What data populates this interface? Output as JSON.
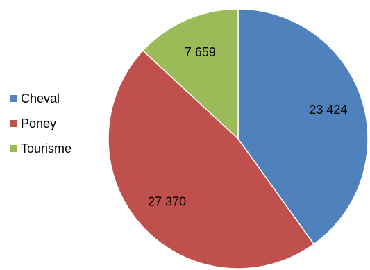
{
  "chart_data": {
    "type": "pie",
    "title": "",
    "categories": [
      "Cheval",
      "Poney",
      "Tourisme"
    ],
    "values": [
      23424,
      27370,
      7659
    ],
    "value_labels": [
      "23 424",
      "27 370",
      "7 659"
    ],
    "colors": [
      "#4f81bd",
      "#c0504d",
      "#9bbb59"
    ],
    "legend_position": "left"
  }
}
